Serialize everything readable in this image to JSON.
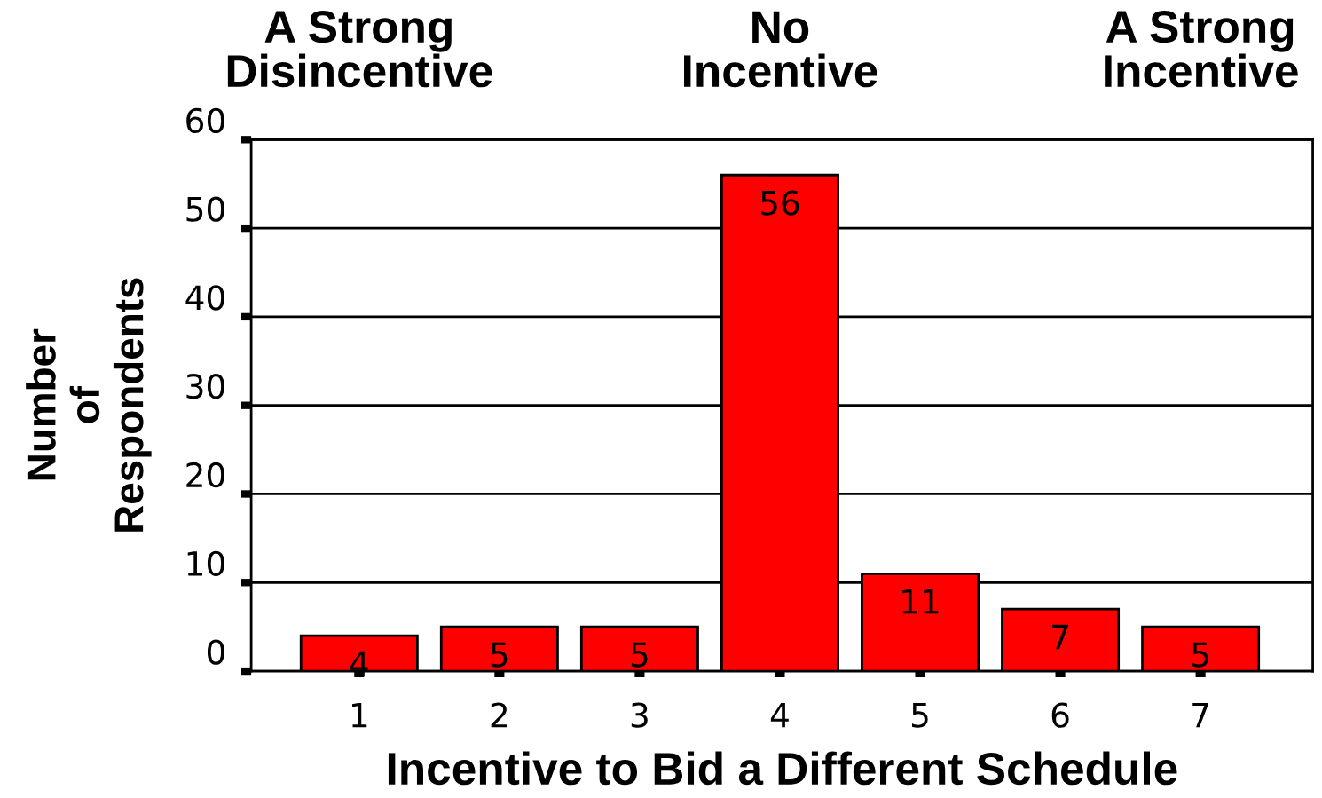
{
  "chart_data": {
    "type": "bar",
    "categories": [
      "1",
      "2",
      "3",
      "4",
      "5",
      "6",
      "7"
    ],
    "values": [
      4,
      5,
      5,
      56,
      11,
      7,
      5
    ],
    "color": "#ff0000",
    "xlabel": "Incentive to Bid a Different Schedule",
    "ylabel": "Number\nof\nRespondents",
    "ylim": [
      0,
      60
    ],
    "yticks": [
      0,
      10,
      20,
      30,
      40,
      50,
      60
    ],
    "grid": "y",
    "data_labels": true,
    "annotations": [
      "A Strong\nDisincentive",
      "No\nIncentive",
      "A Strong\nIncentive"
    ]
  }
}
